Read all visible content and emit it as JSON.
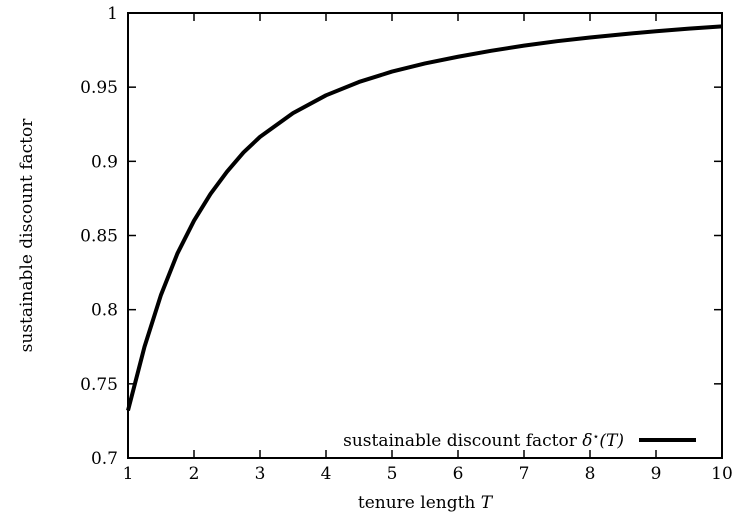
{
  "chart_data": {
    "type": "line",
    "title": "",
    "xlabel": "tenure length T",
    "xlabel_parts": {
      "text": "tenure length ",
      "var": "T"
    },
    "ylabel": "sustainable discount factor",
    "xlim": [
      1,
      10
    ],
    "ylim": [
      0.7,
      1.0
    ],
    "x_ticks": [
      1,
      2,
      3,
      4,
      5,
      6,
      7,
      8,
      9,
      10
    ],
    "x_tick_labels": [
      "1",
      "2",
      "3",
      "4",
      "5",
      "6",
      "7",
      "8",
      "9",
      "10"
    ],
    "y_ticks": [
      0.7,
      0.75,
      0.8,
      0.85,
      0.9,
      0.95,
      1.0
    ],
    "y_tick_labels": [
      "0.7",
      "0.75",
      "0.8",
      "0.85",
      "0.9",
      "0.95",
      "1"
    ],
    "grid": false,
    "legend_position": "bottom-right",
    "series": [
      {
        "name": "sustainable discount factor δ*(T)",
        "name_parts": {
          "text": "sustainable discount factor ",
          "symbol": "δ",
          "sup": "⋆",
          "arg": "(T)"
        },
        "color": "#000000",
        "x": [
          1.0,
          1.25,
          1.5,
          1.75,
          2.0,
          2.25,
          2.5,
          2.75,
          3.0,
          3.5,
          4.0,
          4.5,
          5.0,
          5.5,
          6.0,
          6.5,
          7.0,
          7.5,
          8.0,
          8.5,
          9.0,
          9.5,
          10.0
        ],
        "y": [
          0.732,
          0.775,
          0.81,
          0.838,
          0.86,
          0.878,
          0.893,
          0.906,
          0.9165,
          0.9325,
          0.9445,
          0.9535,
          0.9605,
          0.966,
          0.9705,
          0.9745,
          0.978,
          0.981,
          0.9835,
          0.9857,
          0.9877,
          0.9895,
          0.991
        ]
      }
    ]
  }
}
